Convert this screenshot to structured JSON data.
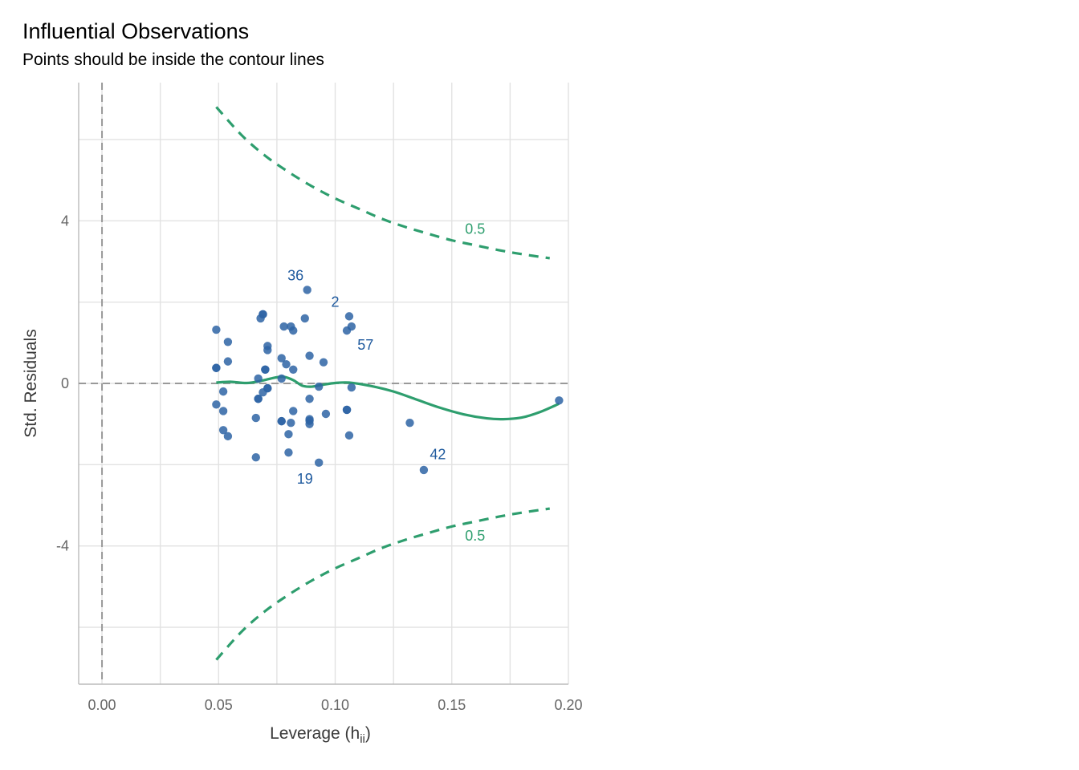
{
  "title": "Influential Observations",
  "subtitle": "Points should be inside the contour lines",
  "colors": {
    "points": "#2e64a4",
    "smooth": "#2e9e6e",
    "contour": "#2e9e6e",
    "grid": "#e2e2e2",
    "reference_lines": "#999999",
    "point_labels": "#1f5a9e"
  },
  "chart_data": {
    "type": "scatter",
    "xlabel": "Leverage (h",
    "xlabel_subscript": "ii",
    "xlabel_close": ")",
    "ylabel": "Std. Residuals",
    "xlim": [
      -0.01,
      0.2
    ],
    "ylim": [
      -7.4,
      7.4
    ],
    "x_ticks": [
      0.0,
      0.05,
      0.1,
      0.15,
      0.2
    ],
    "x_tick_labels": [
      "0.00",
      "0.05",
      "0.10",
      "0.15",
      "0.20"
    ],
    "y_ticks": [
      -4,
      0,
      4
    ],
    "y_tick_labels": [
      "-4",
      "0",
      "4"
    ],
    "grid": true,
    "reference_lines": {
      "x": 0,
      "y": 0
    },
    "points": [
      {
        "x": 0.049,
        "y": 1.32
      },
      {
        "x": 0.049,
        "y": 0.38
      },
      {
        "x": 0.049,
        "y": 0.38
      },
      {
        "x": 0.049,
        "y": -0.52
      },
      {
        "x": 0.052,
        "y": -0.2
      },
      {
        "x": 0.052,
        "y": -0.68
      },
      {
        "x": 0.052,
        "y": -1.15
      },
      {
        "x": 0.054,
        "y": 1.02
      },
      {
        "x": 0.054,
        "y": 0.54
      },
      {
        "x": 0.054,
        "y": -1.3
      },
      {
        "x": 0.066,
        "y": -0.85
      },
      {
        "x": 0.066,
        "y": -1.82
      },
      {
        "x": 0.067,
        "y": 0.12
      },
      {
        "x": 0.067,
        "y": -0.38
      },
      {
        "x": 0.067,
        "y": -0.38
      },
      {
        "x": 0.068,
        "y": 1.6
      },
      {
        "x": 0.069,
        "y": 1.7
      },
      {
        "x": 0.069,
        "y": 1.7
      },
      {
        "x": 0.069,
        "y": -0.22
      },
      {
        "x": 0.07,
        "y": 0.34
      },
      {
        "x": 0.07,
        "y": 0.34
      },
      {
        "x": 0.071,
        "y": 0.82
      },
      {
        "x": 0.071,
        "y": 0.92
      },
      {
        "x": 0.071,
        "y": -0.12
      },
      {
        "x": 0.071,
        "y": -0.12
      },
      {
        "x": 0.077,
        "y": 0.62
      },
      {
        "x": 0.077,
        "y": 0.12
      },
      {
        "x": 0.077,
        "y": -0.93
      },
      {
        "x": 0.077,
        "y": -0.93
      },
      {
        "x": 0.078,
        "y": 1.4
      },
      {
        "x": 0.079,
        "y": 0.47
      },
      {
        "x": 0.08,
        "y": -1.25
      },
      {
        "x": 0.08,
        "y": -1.7
      },
      {
        "x": 0.081,
        "y": 1.4
      },
      {
        "x": 0.081,
        "y": -0.97
      },
      {
        "x": 0.082,
        "y": 1.3
      },
      {
        "x": 0.082,
        "y": 0.34
      },
      {
        "x": 0.082,
        "y": -0.68
      },
      {
        "x": 0.087,
        "y": 1.6
      },
      {
        "x": 0.088,
        "y": 2.3
      },
      {
        "x": 0.089,
        "y": 0.68
      },
      {
        "x": 0.089,
        "y": -0.38
      },
      {
        "x": 0.089,
        "y": -0.88
      },
      {
        "x": 0.089,
        "y": -0.92
      },
      {
        "x": 0.089,
        "y": -1.0
      },
      {
        "x": 0.093,
        "y": -0.08
      },
      {
        "x": 0.093,
        "y": -1.95
      },
      {
        "x": 0.095,
        "y": 0.52
      },
      {
        "x": 0.096,
        "y": -0.75
      },
      {
        "x": 0.105,
        "y": 1.3
      },
      {
        "x": 0.105,
        "y": -0.65
      },
      {
        "x": 0.105,
        "y": -0.65
      },
      {
        "x": 0.106,
        "y": 1.65
      },
      {
        "x": 0.106,
        "y": -1.28
      },
      {
        "x": 0.107,
        "y": 1.4
      },
      {
        "x": 0.107,
        "y": -0.1
      },
      {
        "x": 0.132,
        "y": -0.97
      },
      {
        "x": 0.138,
        "y": -2.13
      },
      {
        "x": 0.196,
        "y": -0.42
      }
    ],
    "point_labels": [
      {
        "text": "36",
        "x": 0.083,
        "y": 2.65
      },
      {
        "text": "2",
        "x": 0.1,
        "y": 2.0
      },
      {
        "text": "57",
        "x": 0.113,
        "y": 0.95
      },
      {
        "text": "42",
        "x": 0.144,
        "y": -1.75
      },
      {
        "text": "19",
        "x": 0.087,
        "y": -2.35
      }
    ],
    "smooth": [
      [
        0.049,
        0.02
      ],
      [
        0.055,
        0.04
      ],
      [
        0.062,
        0.01
      ],
      [
        0.068,
        0.06
      ],
      [
        0.074,
        0.14
      ],
      [
        0.078,
        0.16
      ],
      [
        0.082,
        0.08
      ],
      [
        0.086,
        -0.06
      ],
      [
        0.09,
        -0.08
      ],
      [
        0.095,
        -0.03
      ],
      [
        0.1,
        0.01
      ],
      [
        0.106,
        0.02
      ],
      [
        0.115,
        -0.06
      ],
      [
        0.125,
        -0.2
      ],
      [
        0.135,
        -0.4
      ],
      [
        0.145,
        -0.6
      ],
      [
        0.155,
        -0.76
      ],
      [
        0.165,
        -0.86
      ],
      [
        0.172,
        -0.88
      ],
      [
        0.18,
        -0.84
      ],
      [
        0.188,
        -0.7
      ],
      [
        0.196,
        -0.5
      ]
    ],
    "contours": [
      {
        "label": "0.5",
        "label_pos": {
          "x": 0.16,
          "y": 3.8
        },
        "points": [
          [
            0.049,
            6.8
          ],
          [
            0.06,
            6.1
          ],
          [
            0.07,
            5.6
          ],
          [
            0.08,
            5.2
          ],
          [
            0.09,
            4.85
          ],
          [
            0.1,
            4.55
          ],
          [
            0.11,
            4.3
          ],
          [
            0.12,
            4.05
          ],
          [
            0.13,
            3.85
          ],
          [
            0.14,
            3.68
          ],
          [
            0.15,
            3.52
          ],
          [
            0.16,
            3.4
          ],
          [
            0.17,
            3.28
          ],
          [
            0.18,
            3.18
          ],
          [
            0.192,
            3.08
          ]
        ]
      },
      {
        "label": "0.5",
        "label_pos": {
          "x": 0.16,
          "y": -3.75
        },
        "points": [
          [
            0.049,
            -6.8
          ],
          [
            0.06,
            -6.1
          ],
          [
            0.07,
            -5.6
          ],
          [
            0.08,
            -5.2
          ],
          [
            0.09,
            -4.85
          ],
          [
            0.1,
            -4.55
          ],
          [
            0.11,
            -4.3
          ],
          [
            0.12,
            -4.05
          ],
          [
            0.13,
            -3.85
          ],
          [
            0.14,
            -3.68
          ],
          [
            0.15,
            -3.52
          ],
          [
            0.16,
            -3.4
          ],
          [
            0.17,
            -3.28
          ],
          [
            0.18,
            -3.18
          ],
          [
            0.192,
            -3.08
          ]
        ]
      }
    ]
  }
}
